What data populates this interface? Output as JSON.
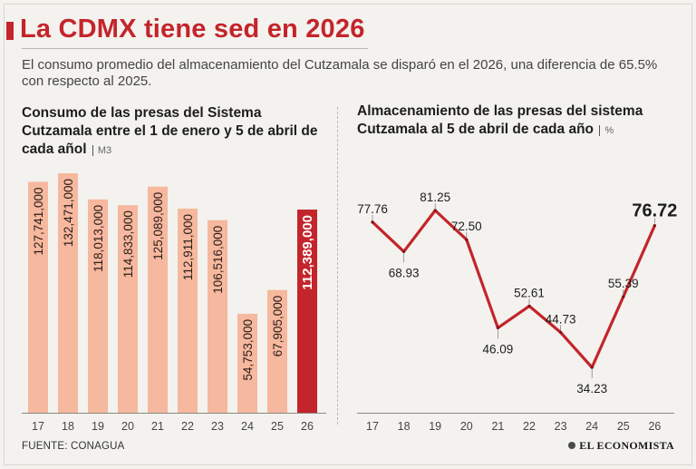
{
  "header": {
    "title": "La CDMX tiene sed en 2026",
    "subtitle": "El consumo promedio del almacenamiento del Cutzamala se disparó en el 2026, una diferencia de 65.5% con respecto al 2025."
  },
  "footer": {
    "source": "FUENTE: CONAGUA",
    "brand": "EL ECONOMISTA"
  },
  "colors": {
    "accent": "#c4242b",
    "bar": "#f6b89e",
    "bar_highlight": "#c4242b",
    "line": "#c4242b"
  },
  "chart_data": [
    {
      "type": "bar",
      "title": "Consumo de las presas del Sistema Cutzamala entre el 1 de enero y 5 de abril de cada añol",
      "unit": "M3",
      "categories": [
        "17",
        "18",
        "19",
        "20",
        "21",
        "22",
        "23",
        "24",
        "25",
        "26"
      ],
      "values": [
        127741000,
        132471000,
        118013000,
        114833000,
        125089000,
        112911000,
        106516000,
        54753000,
        67905000,
        112389000
      ],
      "value_labels": [
        "127,741,000",
        "132,471,000",
        "118,013,000",
        "114,833,000",
        "125,089,000",
        "112,911,000",
        "106,516,000",
        "54,753,000",
        "67,905,000",
        "112,389,000"
      ],
      "highlight_index": 9,
      "ylim": [
        0,
        140000000
      ]
    },
    {
      "type": "line",
      "title": "Almacenamiento de las presas del sistema Cutzamala al 5 de abril de cada año",
      "unit": "%",
      "categories": [
        "17",
        "18",
        "19",
        "20",
        "21",
        "22",
        "23",
        "24",
        "25",
        "26"
      ],
      "values": [
        77.76,
        68.93,
        81.25,
        72.5,
        46.09,
        52.61,
        44.73,
        34.23,
        55.39,
        76.72
      ],
      "value_labels": [
        "77.76",
        "68.93",
        "81.25",
        "72.50",
        "46.09",
        "52.61",
        "44.73",
        "34.23",
        "55.39",
        "76.72"
      ],
      "label_positions": [
        "above",
        "below",
        "above",
        "above",
        "below",
        "above",
        "above",
        "below",
        "above",
        "above"
      ],
      "highlight_index": 9,
      "ylim": [
        20,
        90
      ]
    }
  ]
}
